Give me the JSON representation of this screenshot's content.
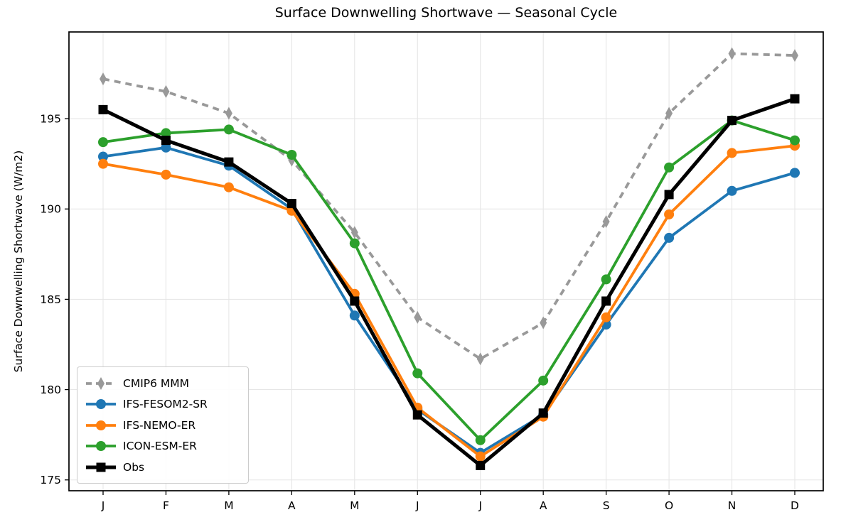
{
  "chart_data": {
    "type": "line",
    "title": "Surface Downwelling Shortwave — Seasonal Cycle",
    "xlabel": "",
    "ylabel": "Surface Downwelling Shortwave (W/m2)",
    "categories": [
      "J",
      "F",
      "M",
      "A",
      "M",
      "J",
      "J",
      "A",
      "S",
      "O",
      "N",
      "D"
    ],
    "yticks": [
      175,
      180,
      185,
      190,
      195
    ],
    "ylim": [
      174.4,
      199.8
    ],
    "grid": true,
    "legend_position": "lower left",
    "series": [
      {
        "name": "CMIP6 MMM",
        "color": "#999999",
        "line_style": "dashed",
        "marker": "diamond",
        "values": [
          197.2,
          196.5,
          195.3,
          192.7,
          188.7,
          184.0,
          181.7,
          183.7,
          189.3,
          195.3,
          198.6,
          198.5
        ]
      },
      {
        "name": "IFS-FESOM2-SR",
        "color": "#1f77b4",
        "line_style": "solid",
        "marker": "circle",
        "values": [
          192.9,
          193.4,
          192.4,
          190.0,
          184.1,
          178.9,
          176.5,
          178.6,
          183.6,
          188.4,
          191.0,
          192.0
        ]
      },
      {
        "name": "IFS-NEMO-ER",
        "color": "#ff7f0e",
        "line_style": "solid",
        "marker": "circle",
        "values": [
          192.5,
          191.9,
          191.2,
          189.9,
          185.3,
          179.0,
          176.3,
          178.5,
          184.0,
          189.7,
          193.1,
          193.5
        ]
      },
      {
        "name": "ICON-ESM-ER",
        "color": "#2ca02c",
        "line_style": "solid",
        "marker": "circle",
        "values": [
          193.7,
          194.2,
          194.4,
          193.0,
          188.1,
          180.9,
          177.2,
          180.5,
          186.1,
          192.3,
          194.9,
          193.8
        ]
      },
      {
        "name": "Obs",
        "color": "#000000",
        "line_style": "solid",
        "marker": "square",
        "values": [
          195.5,
          193.8,
          192.6,
          190.3,
          184.9,
          178.6,
          175.8,
          178.7,
          184.9,
          190.8,
          194.9,
          196.1
        ]
      }
    ]
  }
}
